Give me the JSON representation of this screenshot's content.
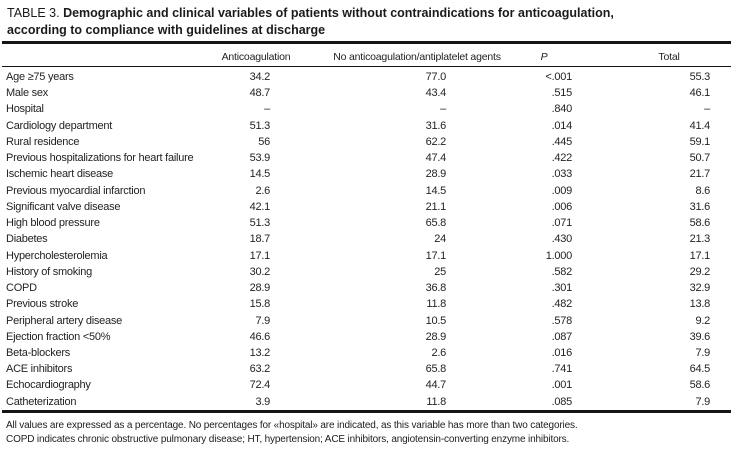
{
  "title": {
    "label": "TABLE 3.",
    "text_line1": "Demographic and clinical variables of patients without contraindications for anticoagulation,",
    "text_line2": "according to compliance with guidelines at discharge"
  },
  "table": {
    "columns": [
      {
        "label": "Anticoagulation"
      },
      {
        "label": "No anticoagulation/antiplatelet agents"
      },
      {
        "label": "P"
      },
      {
        "label": "Total"
      }
    ],
    "rows": [
      {
        "label": "Age ≥75 years",
        "anticoagulation": "34.2",
        "no_anticoagulation": "77.0",
        "p": "<.001",
        "total": "55.3"
      },
      {
        "label": "Male sex",
        "anticoagulation": "48.7",
        "no_anticoagulation": "43.4",
        "p": ".515",
        "total": "46.1"
      },
      {
        "label": "Hospital",
        "anticoagulation": "–",
        "no_anticoagulation": "–",
        "p": ".840",
        "total": "–"
      },
      {
        "label": "Cardiology department",
        "anticoagulation": "51.3",
        "no_anticoagulation": "31.6",
        "p": ".014",
        "total": "41.4"
      },
      {
        "label": "Rural residence",
        "anticoagulation": "56",
        "no_anticoagulation": "62.2",
        "p": ".445",
        "total": "59.1"
      },
      {
        "label": "Previous hospitalizations for heart failure",
        "anticoagulation": "53.9",
        "no_anticoagulation": "47.4",
        "p": ".422",
        "total": "50.7"
      },
      {
        "label": "Ischemic heart disease",
        "anticoagulation": "14.5",
        "no_anticoagulation": "28.9",
        "p": ".033",
        "total": "21.7"
      },
      {
        "label": "Previous myocardial infarction",
        "anticoagulation": "2.6",
        "no_anticoagulation": "14.5",
        "p": ".009",
        "total": "8.6"
      },
      {
        "label": "Significant valve disease",
        "anticoagulation": "42.1",
        "no_anticoagulation": "21.1",
        "p": ".006",
        "total": "31.6"
      },
      {
        "label": "High blood pressure",
        "anticoagulation": "51.3",
        "no_anticoagulation": "65.8",
        "p": ".071",
        "total": "58.6"
      },
      {
        "label": "Diabetes",
        "anticoagulation": "18.7",
        "no_anticoagulation": "24",
        "p": ".430",
        "total": "21.3"
      },
      {
        "label": "Hypercholesterolemia",
        "anticoagulation": "17.1",
        "no_anticoagulation": "17.1",
        "p": "1.000",
        "total": "17.1"
      },
      {
        "label": "History of smoking",
        "anticoagulation": "30.2",
        "no_anticoagulation": "25",
        "p": ".582",
        "total": "29.2"
      },
      {
        "label": "COPD",
        "anticoagulation": "28.9",
        "no_anticoagulation": "36.8",
        "p": ".301",
        "total": "32.9"
      },
      {
        "label": "Previous stroke",
        "anticoagulation": "15.8",
        "no_anticoagulation": "11.8",
        "p": ".482",
        "total": "13.8"
      },
      {
        "label": "Peripheral artery disease",
        "anticoagulation": "7.9",
        "no_anticoagulation": "10.5",
        "p": ".578",
        "total": "9.2"
      },
      {
        "label": "Ejection fraction <50%",
        "anticoagulation": "46.6",
        "no_anticoagulation": "28.9",
        "p": ".087",
        "total": "39.6"
      },
      {
        "label": "Beta-blockers",
        "anticoagulation": "13.2",
        "no_anticoagulation": "2.6",
        "p": ".016",
        "total": "7.9"
      },
      {
        "label": "ACE inhibitors",
        "anticoagulation": "63.2",
        "no_anticoagulation": "65.8",
        "p": ".741",
        "total": "64.5"
      },
      {
        "label": "Echocardiography",
        "anticoagulation": "72.4",
        "no_anticoagulation": "44.7",
        "p": ".001",
        "total": "58.6"
      },
      {
        "label": "Catheterization",
        "anticoagulation": "3.9",
        "no_anticoagulation": "11.8",
        "p": ".085",
        "total": "7.9"
      }
    ]
  },
  "footnotes": {
    "line1": "All values are expressed as a percentage. No percentages for «hospital» are indicated, as this variable has more than two categories.",
    "line2": "COPD indicates chronic obstructive pulmonary disease; HT, hypertension; ACE inhibitors, angiotensin-converting enzyme inhibitors."
  },
  "colors": {
    "text": "#232323",
    "rule": "#151515",
    "background": "#ffffff"
  }
}
